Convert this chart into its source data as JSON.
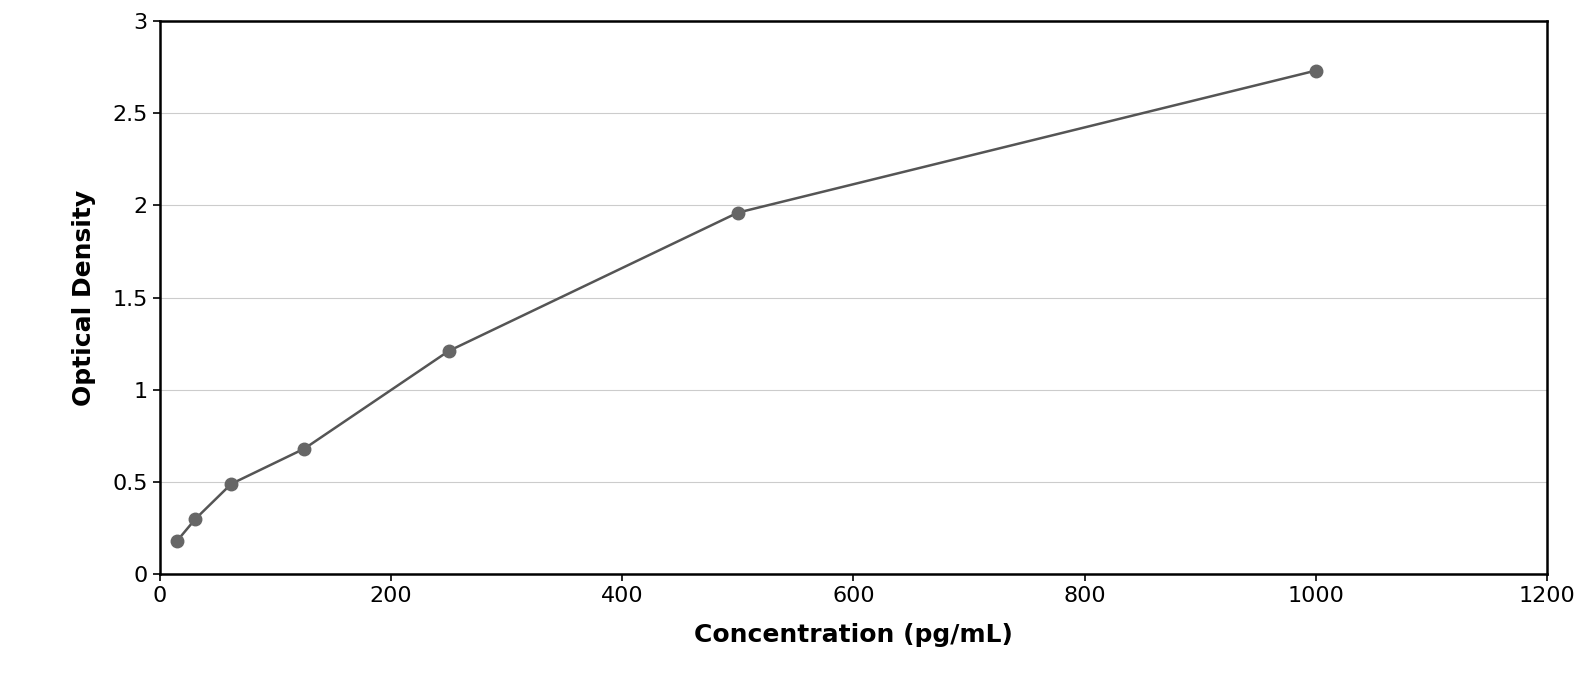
{
  "x_data": [
    15,
    31,
    62,
    125,
    250,
    500,
    1000
  ],
  "y_data": [
    0.18,
    0.3,
    0.49,
    0.68,
    1.21,
    1.96,
    2.73
  ],
  "xlabel": "Concentration (pg/mL)",
  "ylabel": "Optical Density",
  "xlim": [
    0,
    1200
  ],
  "ylim": [
    0,
    3.0
  ],
  "xticks": [
    0,
    200,
    400,
    600,
    800,
    1000,
    1200
  ],
  "yticks": [
    0,
    0.5,
    1.0,
    1.5,
    2.0,
    2.5,
    3.0
  ],
  "marker_color": "#666666",
  "line_color": "#555555",
  "grid_color": "#cccccc",
  "background_color": "#ffffff",
  "marker_size": 9,
  "line_width": 1.8,
  "xlabel_fontsize": 18,
  "ylabel_fontsize": 18,
  "tick_fontsize": 16,
  "figure_bg": "#ffffff",
  "curve_x_end": 1050
}
